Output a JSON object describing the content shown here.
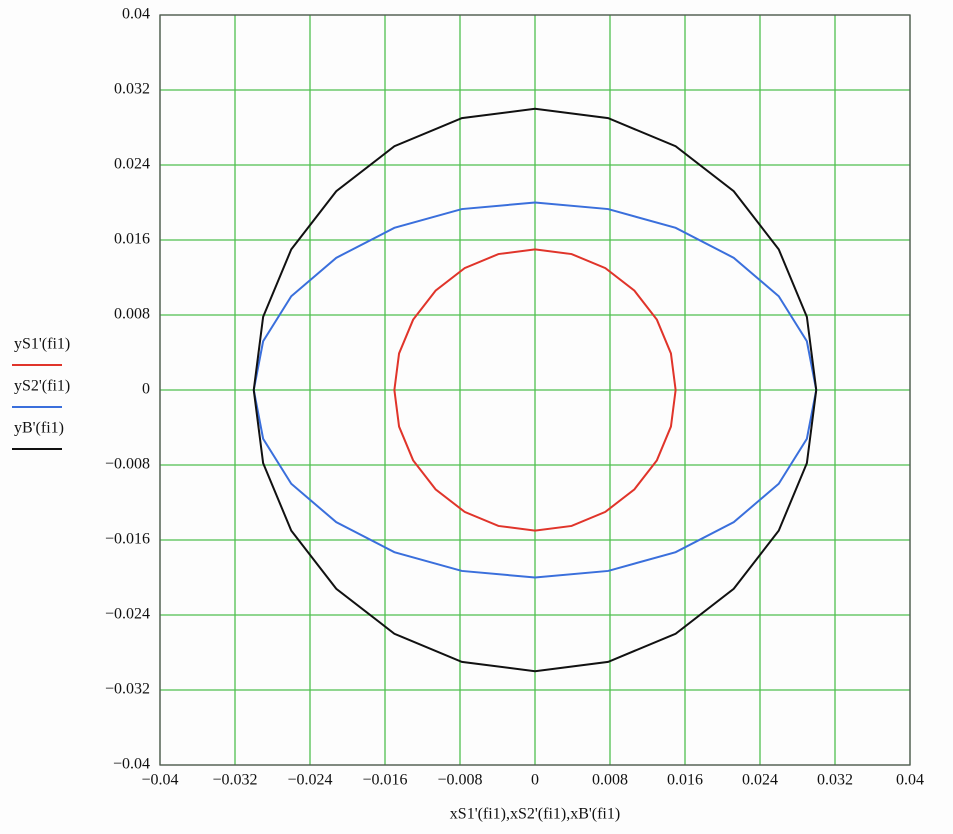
{
  "chart_data": {
    "type": "line",
    "x_label": "xS1'(fi1),xS2'(fi1),xB'(fi1)",
    "xlim": [
      -0.04,
      0.04
    ],
    "ylim": [
      -0.04,
      0.04
    ],
    "xticks": [
      {
        "value": -0.04,
        "label": "−0.04"
      },
      {
        "value": -0.032,
        "label": "−0.032"
      },
      {
        "value": -0.024,
        "label": "−0.024"
      },
      {
        "value": -0.016,
        "label": "−0.016"
      },
      {
        "value": -0.008,
        "label": "−0.008"
      },
      0,
      0.008,
      0.016,
      0.024,
      0.032,
      0.04
    ],
    "yticks": [
      {
        "value": -0.04,
        "label": "−0.04"
      },
      {
        "value": -0.032,
        "label": "−0.032"
      },
      {
        "value": -0.024,
        "label": "−0.024"
      },
      {
        "value": -0.016,
        "label": "−0.016"
      },
      {
        "value": -0.008,
        "label": "−0.008"
      },
      0,
      0.008,
      0.016,
      0.024,
      0.032,
      0.04
    ],
    "grid": true,
    "grid_color": "#4fc04f",
    "series": [
      {
        "name": "yS1'(fi1)",
        "color": "#e0342a",
        "x": [
          0.015,
          0.0145,
          0.013,
          0.0106,
          0.0075,
          0.0039,
          0,
          -0.0039,
          -0.0075,
          -0.0106,
          -0.013,
          -0.0145,
          -0.015,
          -0.0145,
          -0.013,
          -0.0106,
          -0.0075,
          -0.0039,
          0,
          0.0039,
          0.0075,
          0.0106,
          0.013,
          0.0145,
          0.015
        ],
        "values": [
          0,
          0.0039,
          0.0075,
          0.0106,
          0.013,
          0.0145,
          0.015,
          0.0145,
          0.013,
          0.0106,
          0.0075,
          0.0039,
          0,
          -0.0039,
          -0.0075,
          -0.0106,
          -0.013,
          -0.0145,
          -0.015,
          -0.0145,
          -0.013,
          -0.0106,
          -0.0075,
          -0.0039,
          0
        ]
      },
      {
        "name": "yS2'(fi1)",
        "color": "#3a6fdc",
        "x": [
          0.03,
          0.029,
          0.026,
          0.0212,
          0.015,
          0.0078,
          0,
          -0.0078,
          -0.015,
          -0.0212,
          -0.026,
          -0.029,
          -0.03,
          -0.029,
          -0.026,
          -0.0212,
          -0.015,
          -0.0078,
          0,
          0.0078,
          0.015,
          0.0212,
          0.026,
          0.029,
          0.03
        ],
        "values": [
          0,
          0.0052,
          0.01,
          0.0141,
          0.0173,
          0.0193,
          0.02,
          0.0193,
          0.0173,
          0.0141,
          0.01,
          0.0052,
          0,
          -0.0052,
          -0.01,
          -0.0141,
          -0.0173,
          -0.0193,
          -0.02,
          -0.0193,
          -0.0173,
          -0.0141,
          -0.01,
          -0.0052,
          0
        ]
      },
      {
        "name": "yB'(fi1)",
        "color": "#111111",
        "x": [
          0.03,
          0.029,
          0.026,
          0.0212,
          0.015,
          0.0078,
          0,
          -0.0078,
          -0.015,
          -0.0212,
          -0.026,
          -0.029,
          -0.03,
          -0.029,
          -0.026,
          -0.0212,
          -0.015,
          -0.0078,
          0,
          0.0078,
          0.015,
          0.0212,
          0.026,
          0.029,
          0.03
        ],
        "values": [
          0,
          0.0078,
          0.015,
          0.0212,
          0.026,
          0.029,
          0.03,
          0.029,
          0.026,
          0.0212,
          0.015,
          0.0078,
          0,
          -0.0078,
          -0.015,
          -0.0212,
          -0.026,
          -0.029,
          -0.03,
          -0.029,
          -0.026,
          -0.0212,
          -0.015,
          -0.0078,
          0
        ]
      }
    ]
  }
}
